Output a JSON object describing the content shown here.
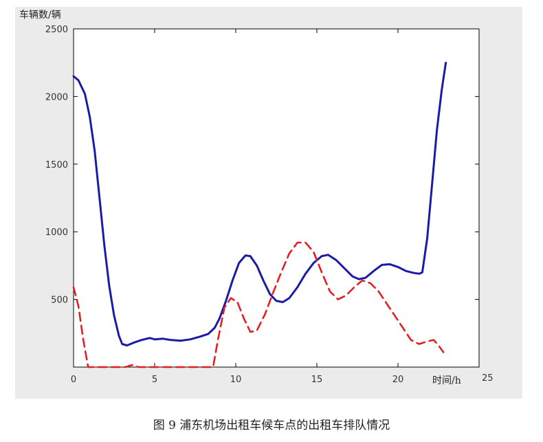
{
  "caption": "图 9   浦东机场出租车候车点的出租车排队情况",
  "chart_data": {
    "type": "line",
    "xlabel": "时间/h",
    "ylabel": "车辆数/辆",
    "xlim": [
      0,
      25
    ],
    "ylim": [
      0,
      2500
    ],
    "xticks": [
      0,
      5,
      10,
      15,
      20,
      25
    ],
    "yticks": [
      500,
      1000,
      1500,
      2000,
      2500
    ],
    "grid": false,
    "series": [
      {
        "style": "solid",
        "color": "#1a1aa8",
        "points": [
          [
            0,
            2150
          ],
          [
            0.3,
            2120
          ],
          [
            0.7,
            2020
          ],
          [
            1,
            1850
          ],
          [
            1.3,
            1600
          ],
          [
            1.6,
            1250
          ],
          [
            1.9,
            900
          ],
          [
            2.2,
            600
          ],
          [
            2.5,
            380
          ],
          [
            2.8,
            230
          ],
          [
            3,
            170
          ],
          [
            3.3,
            160
          ],
          [
            3.7,
            180
          ],
          [
            4.2,
            200
          ],
          [
            4.7,
            215
          ],
          [
            5,
            205
          ],
          [
            5.5,
            210
          ],
          [
            6,
            200
          ],
          [
            6.6,
            195
          ],
          [
            7.2,
            205
          ],
          [
            7.8,
            225
          ],
          [
            8.3,
            245
          ],
          [
            8.7,
            290
          ],
          [
            9,
            360
          ],
          [
            9.4,
            490
          ],
          [
            9.8,
            640
          ],
          [
            10.2,
            770
          ],
          [
            10.6,
            825
          ],
          [
            10.9,
            820
          ],
          [
            11.3,
            750
          ],
          [
            11.7,
            640
          ],
          [
            12.1,
            540
          ],
          [
            12.5,
            490
          ],
          [
            12.9,
            480
          ],
          [
            13.3,
            510
          ],
          [
            13.8,
            590
          ],
          [
            14.3,
            690
          ],
          [
            14.8,
            770
          ],
          [
            15.3,
            820
          ],
          [
            15.7,
            830
          ],
          [
            16.2,
            790
          ],
          [
            16.7,
            730
          ],
          [
            17.2,
            670
          ],
          [
            17.6,
            650
          ],
          [
            18,
            660
          ],
          [
            18.5,
            710
          ],
          [
            19,
            755
          ],
          [
            19.5,
            760
          ],
          [
            20,
            740
          ],
          [
            20.5,
            710
          ],
          [
            21,
            695
          ],
          [
            21.3,
            690
          ],
          [
            21.5,
            700
          ],
          [
            21.8,
            950
          ],
          [
            22.1,
            1350
          ],
          [
            22.4,
            1750
          ],
          [
            22.7,
            2050
          ],
          [
            22.95,
            2250
          ]
        ]
      },
      {
        "style": "dashed",
        "color": "#e02020",
        "points": [
          [
            0,
            590
          ],
          [
            0.3,
            450
          ],
          [
            0.6,
            200
          ],
          [
            0.9,
            0
          ],
          [
            1.5,
            0
          ],
          [
            2.5,
            0
          ],
          [
            3.2,
            0
          ],
          [
            3.6,
            15
          ],
          [
            4,
            0
          ],
          [
            5,
            0
          ],
          [
            6,
            0
          ],
          [
            7,
            0
          ],
          [
            8,
            0
          ],
          [
            8.6,
            0
          ],
          [
            8.9,
            200
          ],
          [
            9.3,
            440
          ],
          [
            9.7,
            510
          ],
          [
            10.1,
            480
          ],
          [
            10.5,
            360
          ],
          [
            10.9,
            260
          ],
          [
            11.3,
            270
          ],
          [
            11.8,
            390
          ],
          [
            12.3,
            550
          ],
          [
            12.8,
            700
          ],
          [
            13.3,
            840
          ],
          [
            13.8,
            920
          ],
          [
            14.3,
            920
          ],
          [
            14.8,
            850
          ],
          [
            15.3,
            700
          ],
          [
            15.8,
            560
          ],
          [
            16.3,
            500
          ],
          [
            16.8,
            530
          ],
          [
            17.3,
            590
          ],
          [
            17.8,
            640
          ],
          [
            18.3,
            620
          ],
          [
            18.8,
            560
          ],
          [
            19.3,
            470
          ],
          [
            19.8,
            380
          ],
          [
            20.3,
            290
          ],
          [
            20.8,
            200
          ],
          [
            21.3,
            170
          ],
          [
            21.8,
            190
          ],
          [
            22.2,
            200
          ],
          [
            22.5,
            160
          ],
          [
            22.8,
            110
          ]
        ]
      }
    ]
  }
}
